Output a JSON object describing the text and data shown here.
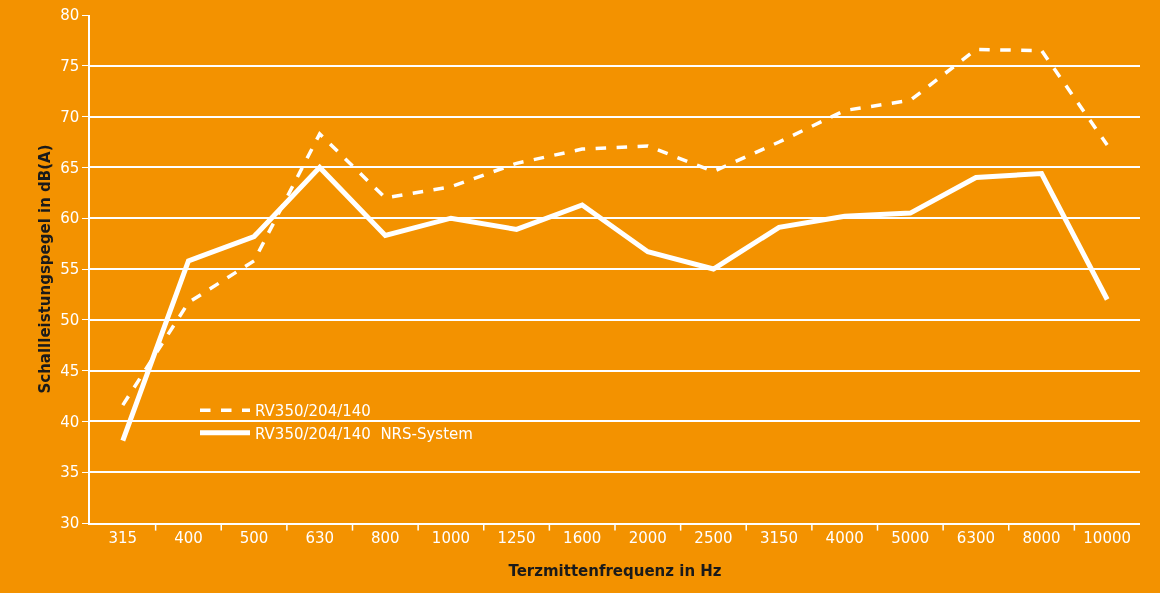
{
  "chart_data": {
    "type": "line",
    "xlabel": "Terzmittenfrequenz in Hz",
    "ylabel": "Schallleistungspegel in dB(A)",
    "categories": [
      "315",
      "400",
      "500",
      "630",
      "800",
      "1000",
      "1250",
      "1600",
      "2000",
      "2500",
      "3150",
      "4000",
      "5000",
      "6300",
      "8000",
      "10000"
    ],
    "series": [
      {
        "name": "RV350/204/140",
        "color": "#ffffff",
        "line_style": "dashed",
        "values": [
          41.6,
          51.7,
          55.8,
          68.3,
          62.0,
          63.1,
          65.4,
          66.8,
          67.1,
          64.6,
          67.5,
          70.6,
          71.6,
          76.6,
          76.5,
          67.2
        ]
      },
      {
        "name": "RV350/204/140  NRS-System",
        "color": "#ffffff",
        "line_style": "solid",
        "values": [
          38.1,
          55.8,
          58.2,
          65.0,
          58.3,
          60.0,
          58.9,
          61.3,
          56.7,
          55.0,
          59.1,
          60.2,
          60.5,
          64.0,
          64.4,
          52.0
        ]
      }
    ],
    "ylim": [
      30,
      80
    ],
    "yticks": [
      30,
      35,
      40,
      45,
      50,
      55,
      60,
      65,
      70,
      75,
      80
    ],
    "grid": "y",
    "legend": "left",
    "marker": "none"
  }
}
